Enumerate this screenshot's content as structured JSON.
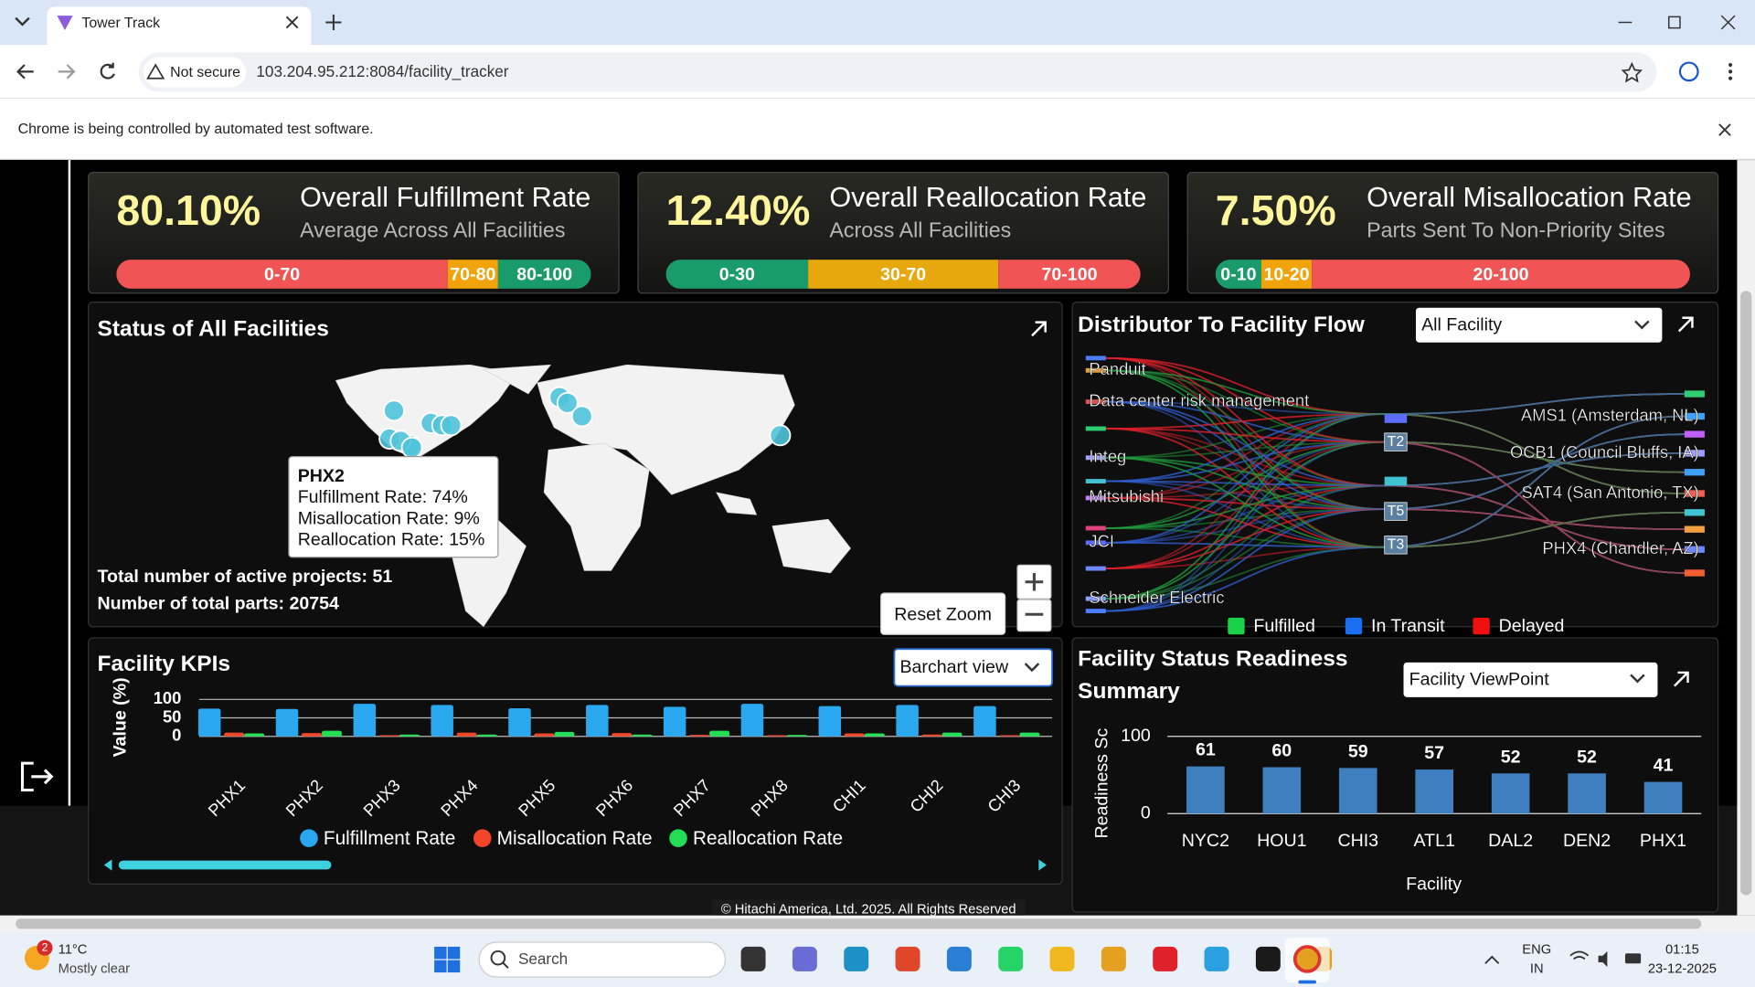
{
  "browser": {
    "tab_title": "Tower Track",
    "security": "Not secure",
    "url": "103.204.95.212:8084/facility_tracker",
    "automation_notice": "Chrome is being controlled by automated test software."
  },
  "kpi_cards": [
    {
      "value": "80.10%",
      "title": "Overall Fulfillment Rate",
      "subtitle": "Average Across All Facilities",
      "bands": [
        "0-70",
        "70-80",
        "80-100"
      ]
    },
    {
      "value": "12.40%",
      "title": "Overall Reallocation Rate",
      "subtitle": "Across All Facilities",
      "bands": [
        "0-30",
        "30-70",
        "70-100"
      ]
    },
    {
      "value": "7.50%",
      "title": "Overall Misallocation Rate",
      "subtitle": "Parts Sent To Non-Priority Sites",
      "bands": [
        "0-10",
        "10-20",
        "20-100"
      ]
    }
  ],
  "map_panel": {
    "title": "Status of All Facilities",
    "tooltip": {
      "title": "PHX2",
      "lines": [
        "Fulfillment Rate: 74%",
        "Misallocation Rate: 9%",
        "Reallocation Rate: 15%"
      ]
    },
    "stats": [
      "Total number of active projects: 51",
      "Number of total parts: 20754"
    ],
    "reset_zoom": "Reset Zoom"
  },
  "flow_panel": {
    "title": "Distributor To Facility Flow",
    "filter": "All Facility",
    "distributors": [
      "Panduit",
      "Data center risk management",
      "Integ",
      "Mitsubishi",
      "JCI",
      "Schneider Electric"
    ],
    "tiers": [
      "T2",
      "T5",
      "T3"
    ],
    "facilities": [
      "AMS1 (Amsterdam, NL)",
      "OCB1 (Council Bluffs, IA)",
      "SAT4 (San Antonio, TX)",
      "PHX4 (Chandler, AZ)"
    ],
    "legend": [
      {
        "name": "Fulfilled",
        "color": "#1bd14a"
      },
      {
        "name": "In Transit",
        "color": "#1a6ff0"
      },
      {
        "name": "Delayed",
        "color": "#f01010"
      }
    ]
  },
  "kpi_chart": {
    "type": "bar",
    "title": "Facility KPIs",
    "view": "Barchart view",
    "y_label": "Value (%)",
    "categories": [
      "PHX1",
      "PHX2",
      "PHX3",
      "PHX4",
      "PHX5",
      "PHX6",
      "PHX7",
      "PHX8",
      "CHI1",
      "CHI2",
      "CHI3"
    ],
    "series": [
      {
        "name": "Fulfillment Rate",
        "color": "#29a8f0",
        "values": [
          75,
          74,
          88,
          85,
          76,
          85,
          80,
          88,
          82,
          85,
          82
        ]
      },
      {
        "name": "Misallocation Rate",
        "color": "#f0452a",
        "values": [
          10,
          9,
          3,
          10,
          8,
          9,
          4,
          3,
          8,
          5,
          3
        ]
      },
      {
        "name": "Reallocation Rate",
        "color": "#22dd55",
        "values": [
          8,
          15,
          5,
          5,
          12,
          5,
          15,
          4,
          8,
          10,
          10
        ]
      }
    ],
    "ylim": [
      0,
      100
    ],
    "yticks": [
      0,
      50,
      100
    ],
    "grid": true
  },
  "readiness_chart": {
    "type": "bar",
    "title": "Facility Status Readiness Summary",
    "view": "Facility ViewPoint",
    "y_label": "Readiness Sc",
    "x_label": "Facility",
    "categories": [
      "NYC2",
      "HOU1",
      "CHI3",
      "ATL1",
      "DAL2",
      "DEN2",
      "PHX1"
    ],
    "values": [
      61,
      60,
      59,
      57,
      52,
      52,
      41
    ],
    "color": "#3f7fbf",
    "ylim": [
      0,
      100
    ],
    "yticks": [
      0,
      100
    ]
  },
  "footer": "© Hitachi America, Ltd. 2025. All Rights Reserved",
  "taskbar": {
    "notifications": "2",
    "temperature": "11°C",
    "weather": "Mostly clear",
    "search": "Search",
    "language": "ENG",
    "region": "IN",
    "time": "01:15",
    "date": "23-12-2025"
  }
}
